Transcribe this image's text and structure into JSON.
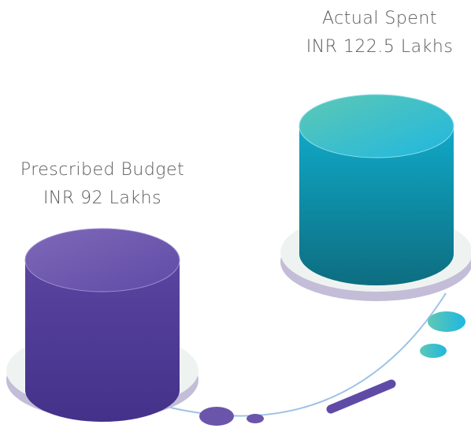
{
  "items": [
    {
      "label": "Prescribed Budget",
      "amount": "INR 92 Lakhs"
    },
    {
      "label": "Actual Spent",
      "amount": "INR 122.5 Lakhs"
    }
  ]
}
